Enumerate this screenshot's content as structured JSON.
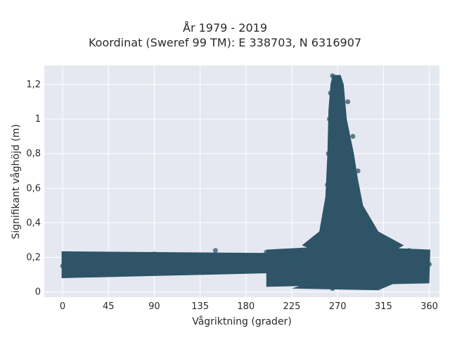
{
  "chart_data": {
    "type": "scatter",
    "title": "År 1979 - 2019",
    "subtitle": "Koordinat (Sweref 99 TM): E 338703, N 6316907",
    "xlabel": "Vågriktning (grader)",
    "ylabel": "Signifikant våghöjd (m)",
    "xlim": [
      -18,
      370
    ],
    "ylim": [
      -0.03,
      1.31
    ],
    "x_ticks": [
      0,
      45,
      90,
      135,
      180,
      225,
      270,
      315,
      360
    ],
    "x_tick_labels": [
      "0",
      "45",
      "90",
      "135",
      "180",
      "225",
      "270",
      "315",
      "360"
    ],
    "y_ticks": [
      0,
      0.2,
      0.4,
      0.6,
      0.8,
      1.0,
      1.2
    ],
    "y_tick_labels": [
      "0",
      "0,2",
      "0,4",
      "0,6",
      "0,8",
      "1",
      "1,2"
    ],
    "grid": true,
    "colors": {
      "marker": "#2f5468",
      "plot_bg": "#e5e8f0",
      "grid": "#ffffff"
    },
    "series": [
      {
        "points": [
          [
            0,
            0.15
          ],
          [
            10,
            0.17
          ],
          [
            22,
            0.16
          ],
          [
            35,
            0.14
          ],
          [
            45,
            0.17
          ],
          [
            58,
            0.16
          ],
          [
            70,
            0.15
          ],
          [
            82,
            0.18
          ],
          [
            95,
            0.17
          ],
          [
            108,
            0.18
          ],
          [
            120,
            0.19
          ],
          [
            135,
            0.2
          ],
          [
            148,
            0.19
          ],
          [
            160,
            0.2
          ],
          [
            172,
            0.2
          ],
          [
            185,
            0.2
          ],
          [
            198,
            0.21
          ],
          [
            210,
            0.2
          ],
          [
            222,
            0.19
          ],
          [
            232,
            0.18
          ],
          [
            240,
            0.2
          ],
          [
            248,
            0.25
          ],
          [
            255,
            0.3
          ],
          [
            258,
            0.45
          ],
          [
            260,
            0.62
          ],
          [
            261,
            0.8
          ],
          [
            262,
            1.0
          ],
          [
            263,
            1.15
          ],
          [
            265,
            1.25
          ],
          [
            270,
            1.18
          ],
          [
            272,
            0.95
          ],
          [
            275,
            0.75
          ],
          [
            278,
            0.6
          ],
          [
            282,
            0.48
          ],
          [
            288,
            0.4
          ],
          [
            295,
            0.32
          ],
          [
            305,
            0.25
          ],
          [
            315,
            0.2
          ],
          [
            325,
            0.18
          ],
          [
            335,
            0.16
          ],
          [
            345,
            0.15
          ],
          [
            355,
            0.15
          ],
          [
            360,
            0.16
          ],
          [
            225,
            0.08
          ],
          [
            240,
            0.05
          ],
          [
            265,
            0.02
          ],
          [
            285,
            0.03
          ],
          [
            300,
            0.06
          ],
          [
            330,
            0.1
          ],
          [
            350,
            0.12
          ],
          [
            3,
            0.22
          ],
          [
            30,
            0.22
          ],
          [
            90,
            0.22
          ],
          [
            150,
            0.24
          ],
          [
            200,
            0.23
          ],
          [
            280,
            1.1
          ],
          [
            285,
            0.9
          ],
          [
            290,
            0.7
          ],
          [
            320,
            0.28
          ],
          [
            340,
            0.24
          ]
        ]
      }
    ]
  }
}
